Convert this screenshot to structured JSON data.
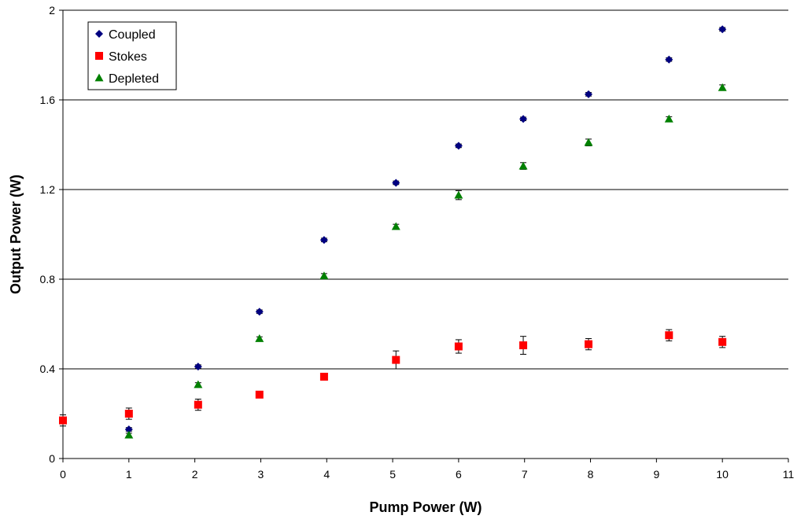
{
  "chart_data": {
    "type": "scatter",
    "title": "",
    "xlabel": "Pump Power (W)",
    "ylabel": "Output Power (W)",
    "xlim": [
      0,
      11
    ],
    "ylim": [
      0,
      2
    ],
    "x_ticks": [
      "0",
      "1",
      "2",
      "3",
      "4",
      "5",
      "6",
      "7",
      "8",
      "9",
      "10",
      "11"
    ],
    "y_ticks": [
      "0",
      "0.4",
      "0.8",
      "1.2",
      "1.6",
      "2"
    ],
    "grid": "horizontal",
    "legend_position": "top-left",
    "series": [
      {
        "name": "Coupled",
        "marker": "diamond",
        "color": "#000080",
        "points": [
          {
            "x": 1.0,
            "y": 0.13,
            "err": 0.008
          },
          {
            "x": 2.05,
            "y": 0.41,
            "err": 0.008
          },
          {
            "x": 2.98,
            "y": 0.655,
            "err": 0.008
          },
          {
            "x": 3.96,
            "y": 0.975,
            "err": 0.008
          },
          {
            "x": 5.05,
            "y": 1.23,
            "err": 0.008
          },
          {
            "x": 6.0,
            "y": 1.395,
            "err": 0.008
          },
          {
            "x": 6.98,
            "y": 1.515,
            "err": 0.008
          },
          {
            "x": 7.97,
            "y": 1.625,
            "err": 0.008
          },
          {
            "x": 9.19,
            "y": 1.78,
            "err": 0.008
          },
          {
            "x": 10.0,
            "y": 1.915,
            "err": 0.008
          }
        ]
      },
      {
        "name": "Stokes",
        "marker": "square",
        "color": "#ff0000",
        "points": [
          {
            "x": 0.0,
            "y": 0.17,
            "err": 0.025
          },
          {
            "x": 1.0,
            "y": 0.2,
            "err": 0.025
          },
          {
            "x": 2.05,
            "y": 0.24,
            "err": 0.025
          },
          {
            "x": 2.98,
            "y": 0.285,
            "err": 0.012
          },
          {
            "x": 3.96,
            "y": 0.365,
            "err": 0.015
          },
          {
            "x": 5.05,
            "y": 0.44,
            "err": 0.04
          },
          {
            "x": 6.0,
            "y": 0.5,
            "err": 0.03
          },
          {
            "x": 6.98,
            "y": 0.505,
            "err": 0.04
          },
          {
            "x": 7.97,
            "y": 0.51,
            "err": 0.025
          },
          {
            "x": 9.19,
            "y": 0.55,
            "err": 0.025
          },
          {
            "x": 10.0,
            "y": 0.52,
            "err": 0.025
          }
        ]
      },
      {
        "name": "Depleted",
        "marker": "triangle",
        "color": "#008000",
        "points": [
          {
            "x": 1.0,
            "y": 0.105,
            "err": 0.008
          },
          {
            "x": 2.05,
            "y": 0.33,
            "err": 0.008
          },
          {
            "x": 2.98,
            "y": 0.535,
            "err": 0.008
          },
          {
            "x": 3.96,
            "y": 0.815,
            "err": 0.01
          },
          {
            "x": 5.05,
            "y": 1.035,
            "err": 0.01
          },
          {
            "x": 6.0,
            "y": 1.175,
            "err": 0.02
          },
          {
            "x": 6.98,
            "y": 1.305,
            "err": 0.015
          },
          {
            "x": 7.97,
            "y": 1.41,
            "err": 0.015
          },
          {
            "x": 9.19,
            "y": 1.515,
            "err": 0.01
          },
          {
            "x": 10.0,
            "y": 1.655,
            "err": 0.012
          }
        ]
      }
    ]
  }
}
